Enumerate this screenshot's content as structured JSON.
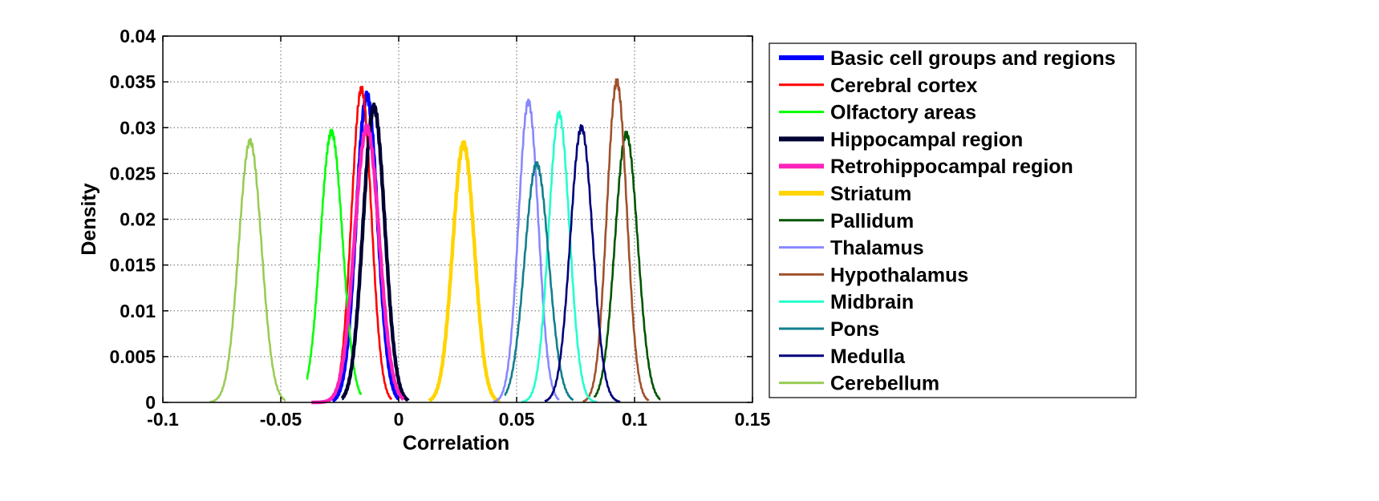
{
  "chart_data": {
    "type": "line",
    "title": "",
    "xlabel": "Correlation",
    "ylabel": "Density",
    "xlim": [
      -0.1,
      0.15
    ],
    "ylim": [
      0,
      0.04
    ],
    "x_ticks": [
      "-0.1",
      "-0.05",
      "0",
      "0.05",
      "0.1",
      "0.15"
    ],
    "y_ticks": [
      "0",
      "0.005",
      "0.01",
      "0.015",
      "0.02",
      "0.025",
      "0.03",
      "0.035",
      "0.04"
    ],
    "grid": true,
    "legend_position": "outside-right",
    "series": [
      {
        "name": "Basic cell groups and regions",
        "color": "#0000ff",
        "thick": true,
        "mean": -0.0135,
        "sd": 0.0045,
        "peak": 0.0335,
        "xmin": -0.028,
        "xmax": 0.0
      },
      {
        "name": "Cerebral cortex",
        "color": "#ff0000",
        "thick": false,
        "mean": -0.0158,
        "sd": 0.0042,
        "peak": 0.0342,
        "xmin": -0.031,
        "xmax": -0.003
      },
      {
        "name": "Olfactory areas",
        "color": "#00ff00",
        "thick": false,
        "mean": -0.0285,
        "sd": 0.0047,
        "peak": 0.0295,
        "xmin": -0.039,
        "xmax": -0.016
      },
      {
        "name": "Hippocampal region",
        "color": "#000033",
        "thick": true,
        "mean": -0.0105,
        "sd": 0.0046,
        "peak": 0.0322,
        "xmin": -0.024,
        "xmax": 0.004
      },
      {
        "name": "Retrohippocampal region",
        "color": "#ff22bb",
        "thick": true,
        "mean": -0.0135,
        "sd": 0.0052,
        "peak": 0.03,
        "xmin": -0.037,
        "xmax": 0.002
      },
      {
        "name": "Striatum",
        "color": "#ffd400",
        "thick": true,
        "mean": 0.0275,
        "sd": 0.0046,
        "peak": 0.0282,
        "xmin": 0.013,
        "xmax": 0.043
      },
      {
        "name": "Pallidum",
        "color": "#005500",
        "thick": false,
        "mean": 0.0965,
        "sd": 0.0048,
        "peak": 0.0293,
        "xmin": 0.083,
        "xmax": 0.111
      },
      {
        "name": "Thalamus",
        "color": "#8888ff",
        "thick": false,
        "mean": 0.055,
        "sd": 0.0042,
        "peak": 0.0328,
        "xmin": 0.04,
        "xmax": 0.068
      },
      {
        "name": "Hypothalamus",
        "color": "#a0522d",
        "thick": false,
        "mean": 0.0925,
        "sd": 0.0042,
        "peak": 0.035,
        "xmin": 0.078,
        "xmax": 0.106
      },
      {
        "name": "Midbrain",
        "color": "#22ffcc",
        "thick": false,
        "mean": 0.068,
        "sd": 0.0044,
        "peak": 0.0315,
        "xmin": 0.052,
        "xmax": 0.084
      },
      {
        "name": "Pons",
        "color": "#117f8f",
        "thick": false,
        "mean": 0.0585,
        "sd": 0.0051,
        "peak": 0.026,
        "xmin": 0.045,
        "xmax": 0.074
      },
      {
        "name": "Medulla",
        "color": "#00007a",
        "thick": false,
        "mean": 0.0775,
        "sd": 0.0047,
        "peak": 0.03,
        "xmin": 0.062,
        "xmax": 0.094
      },
      {
        "name": "Cerebellum",
        "color": "#99cc55",
        "thick": false,
        "mean": -0.063,
        "sd": 0.0048,
        "peak": 0.0285,
        "xmin": -0.08,
        "xmax": -0.048
      }
    ]
  }
}
